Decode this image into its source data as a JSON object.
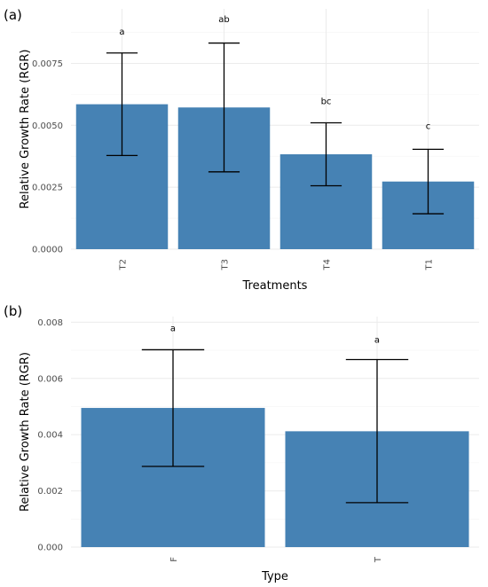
{
  "chart_data": [
    {
      "type": "bar",
      "panel_label": "(a)",
      "xlabel": "Treatments",
      "ylabel": "Relative Growth Rate (RGR)",
      "categories": [
        "T2",
        "T3",
        "T4",
        "T1"
      ],
      "values": [
        0.00585,
        0.00572,
        0.00383,
        0.00273
      ],
      "error_upper": [
        0.00792,
        0.00832,
        0.0051,
        0.00403
      ],
      "error_lower": [
        0.00378,
        0.00312,
        0.00256,
        0.00143
      ],
      "significance_labels": [
        "a",
        "ab",
        "bc",
        "c"
      ],
      "significance_y": [
        0.0088,
        0.0093,
        0.006,
        0.005
      ],
      "yticks": [
        0.0,
        0.0025,
        0.005,
        0.0075
      ],
      "ytick_labels": [
        "0.0000",
        "0.0025",
        "0.0050",
        "0.0075"
      ],
      "ylim": [
        0,
        0.0097
      ],
      "bar_color": "#4682b4",
      "grid": true
    },
    {
      "type": "bar",
      "panel_label": "(b)",
      "xlabel": "Type",
      "ylabel": "Relative Growth Rate (RGR)",
      "categories": [
        "F",
        "T"
      ],
      "values": [
        0.00495,
        0.00412
      ],
      "error_upper": [
        0.00702,
        0.00667
      ],
      "error_lower": [
        0.00287,
        0.00158
      ],
      "significance_labels": [
        "a",
        "a"
      ],
      "significance_y": [
        0.0078,
        0.0074
      ],
      "yticks": [
        0.0,
        0.002,
        0.004,
        0.006,
        0.008
      ],
      "ytick_labels": [
        "0.000",
        "0.002",
        "0.004",
        "0.006",
        "0.008"
      ],
      "ylim": [
        0,
        0.0082
      ],
      "bar_color": "#4682b4",
      "grid": true
    }
  ]
}
